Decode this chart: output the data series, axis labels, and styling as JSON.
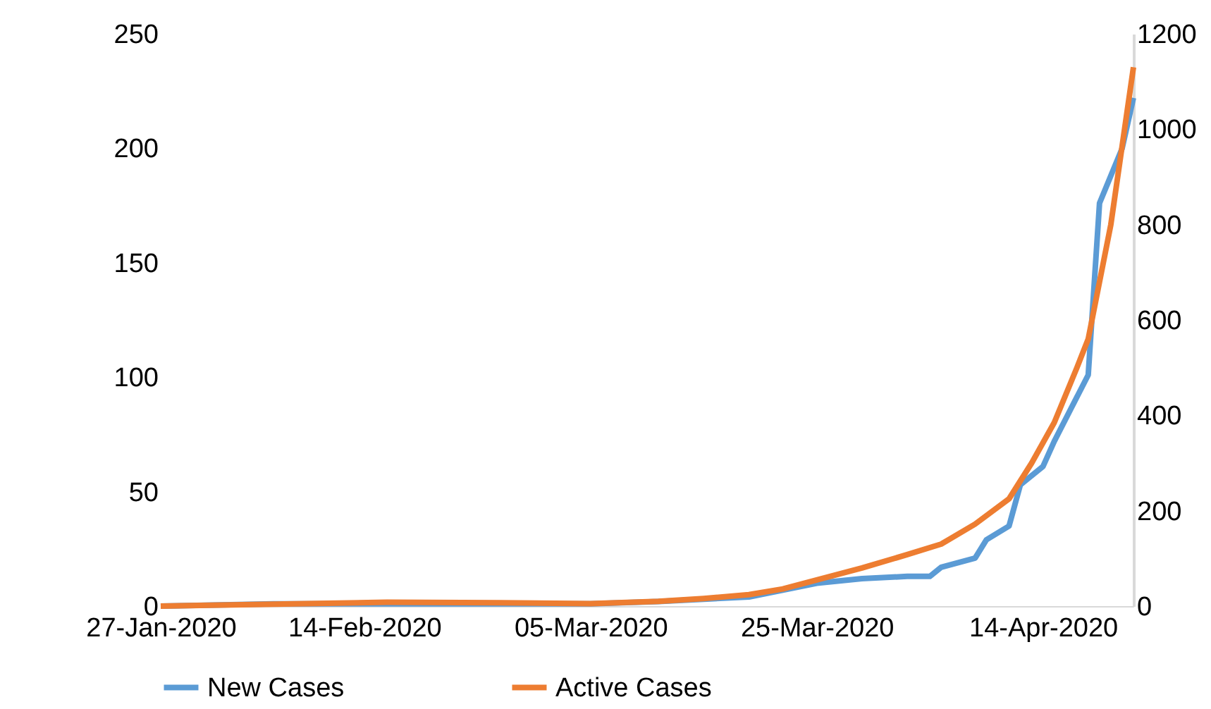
{
  "chart_data": {
    "type": "line",
    "x": [
      "2020-01-27",
      "2020-02-06",
      "2020-02-16",
      "2020-02-26",
      "2020-03-05",
      "2020-03-11",
      "2020-03-15",
      "2020-03-19",
      "2020-03-22",
      "2020-03-25",
      "2020-03-29",
      "2020-04-02",
      "2020-04-04",
      "2020-04-05",
      "2020-04-08",
      "2020-04-09",
      "2020-04-11",
      "2020-04-12",
      "2020-04-14",
      "2020-04-15",
      "2020-04-18",
      "2020-04-19",
      "2020-04-21",
      "2020-04-22"
    ],
    "series": [
      {
        "name": "New Cases",
        "color": "#5b9bd5",
        "axis": "y",
        "values": [
          0,
          1,
          1,
          1,
          1,
          2,
          3,
          4,
          7,
          10,
          12,
          13,
          13,
          17,
          21,
          29,
          35,
          53,
          61,
          72,
          101,
          176,
          200,
          222
        ]
      },
      {
        "name": "Active Cases",
        "color": "#ed7d31",
        "axis": "y2",
        "x": [
          "2020-01-27",
          "2020-02-06",
          "2020-02-16",
          "2020-02-26",
          "2020-03-05",
          "2020-03-11",
          "2020-03-15",
          "2020-03-19",
          "2020-03-22",
          "2020-03-25",
          "2020-03-29",
          "2020-04-02",
          "2020-04-05",
          "2020-04-08",
          "2020-04-11",
          "2020-04-13",
          "2020-04-15",
          "2020-04-17",
          "2020-04-18",
          "2020-04-20",
          "2020-04-22"
        ],
        "values": [
          0,
          4,
          8,
          7,
          5,
          10,
          16,
          24,
          36,
          55,
          80,
          108,
          130,
          172,
          225,
          300,
          385,
          500,
          560,
          800,
          1130
        ]
      }
    ],
    "xlim": [
      "2020-01-27",
      "2020-04-22"
    ],
    "xticks": [
      {
        "value": "2020-01-27",
        "label": "27-Jan-2020"
      },
      {
        "value": "2020-02-14",
        "label": "14-Feb-2020"
      },
      {
        "value": "2020-03-05",
        "label": "05-Mar-2020"
      },
      {
        "value": "2020-03-25",
        "label": "25-Mar-2020"
      },
      {
        "value": "2020-04-14",
        "label": "14-Apr-2020"
      }
    ],
    "ylim": [
      0,
      250
    ],
    "yticks": [
      0,
      50,
      100,
      150,
      200,
      250
    ],
    "y2lim": [
      0,
      1200
    ],
    "y2ticks": [
      0,
      200,
      400,
      600,
      800,
      1000,
      1200
    ],
    "grid": false,
    "legend": "bottom",
    "marker": "none",
    "line_style": "solid"
  }
}
